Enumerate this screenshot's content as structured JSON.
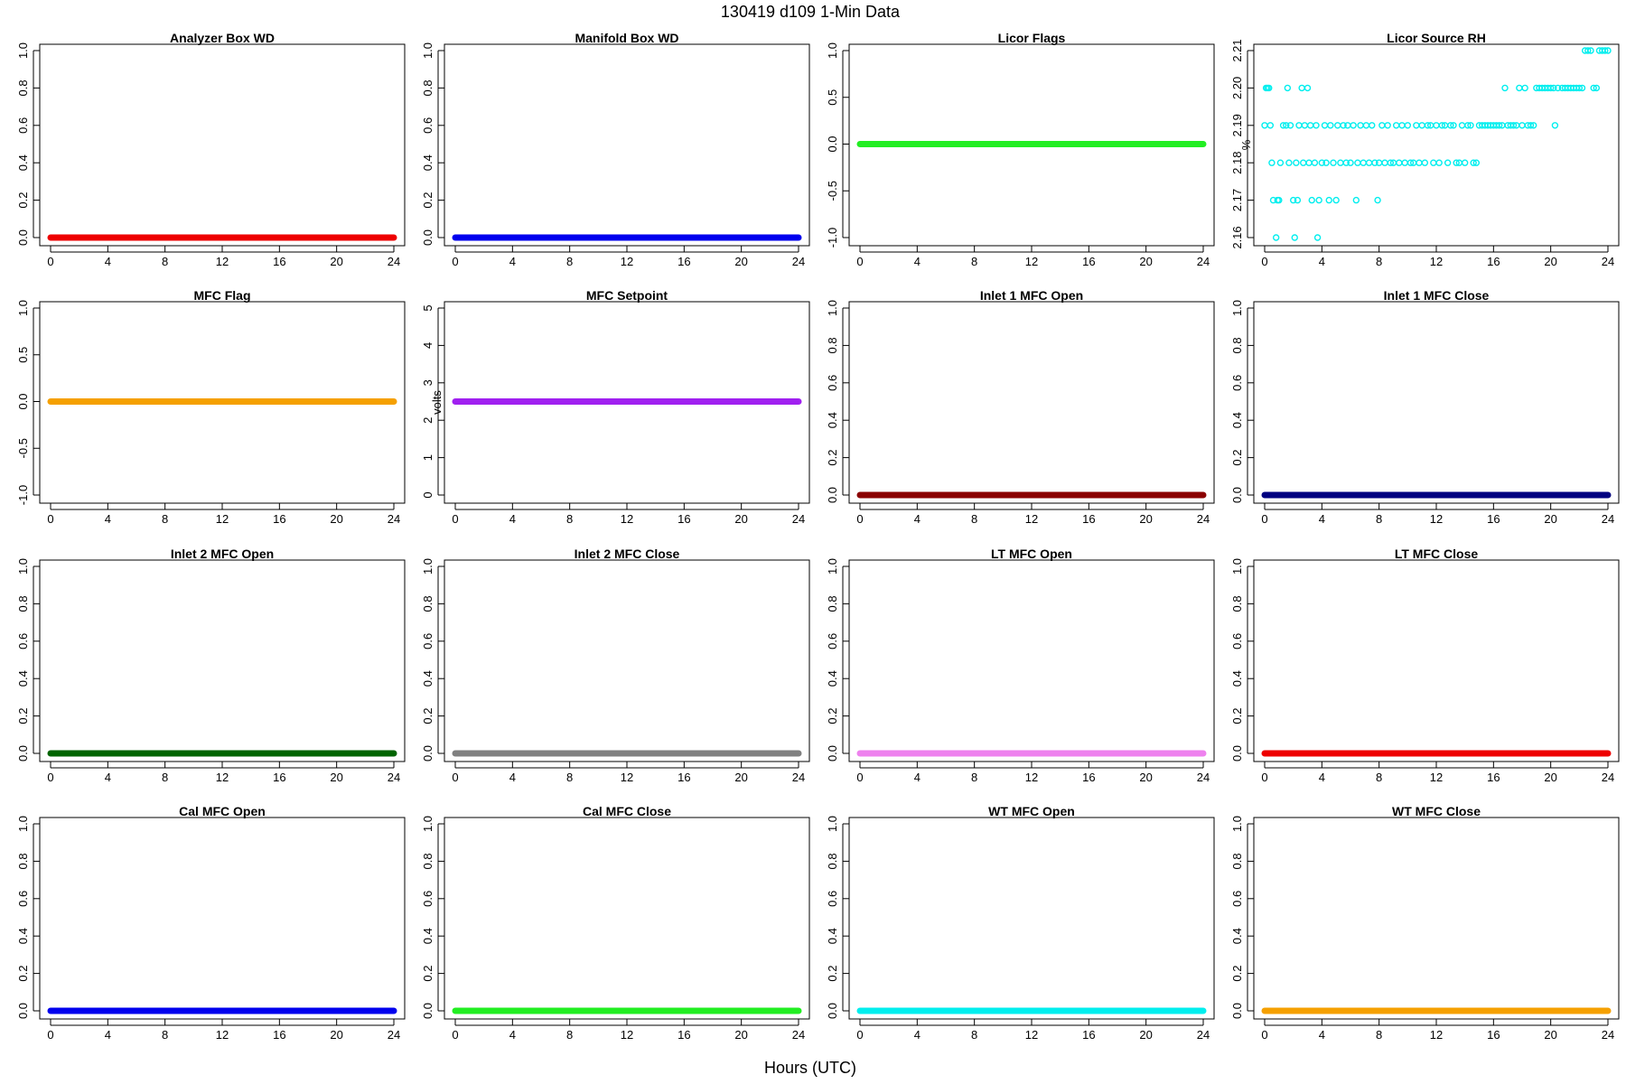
{
  "figure": {
    "title": "130419   d109   1-Min Data",
    "xlabel": "Hours (UTC)"
  },
  "chart_data": [
    {
      "type": "scatter",
      "title": "Analyzer Box WD",
      "ylabel": "",
      "color": "#ee0000",
      "xlim": [
        0,
        24
      ],
      "ylim": [
        0,
        1
      ],
      "xticks": [
        "0",
        "4",
        "8",
        "12",
        "16",
        "20",
        "24"
      ],
      "yticks": [
        "0.0",
        "0.2",
        "0.4",
        "0.6",
        "0.8",
        "1.0"
      ],
      "series": [
        {
          "x": [
            0,
            24
          ],
          "y": [
            0,
            0
          ],
          "continuous": true
        }
      ]
    },
    {
      "type": "scatter",
      "title": "Manifold Box WD",
      "ylabel": "",
      "color": "#0000ee",
      "xlim": [
        0,
        24
      ],
      "ylim": [
        0,
        1
      ],
      "xticks": [
        "0",
        "4",
        "8",
        "12",
        "16",
        "20",
        "24"
      ],
      "yticks": [
        "0.0",
        "0.2",
        "0.4",
        "0.6",
        "0.8",
        "1.0"
      ],
      "series": [
        {
          "x": [
            0,
            24
          ],
          "y": [
            0,
            0
          ],
          "continuous": true
        }
      ]
    },
    {
      "type": "scatter",
      "title": "Licor Flags",
      "ylabel": "",
      "color": "#22ee22",
      "xlim": [
        0,
        24
      ],
      "ylim": [
        -1,
        1
      ],
      "xticks": [
        "0",
        "4",
        "8",
        "12",
        "16",
        "20",
        "24"
      ],
      "yticks": [
        "-1.0",
        "-0.5",
        "0.0",
        "0.5",
        "1.0"
      ],
      "series": [
        {
          "x": [
            0,
            24
          ],
          "y": [
            0,
            0
          ],
          "continuous": true
        }
      ]
    },
    {
      "type": "scatter",
      "title": "Licor Source RH",
      "ylabel": "%",
      "color": "#00eeee",
      "xlim": [
        0,
        24
      ],
      "ylim": [
        2.16,
        2.21
      ],
      "xticks": [
        "0",
        "4",
        "8",
        "12",
        "16",
        "20",
        "24"
      ],
      "yticks": [
        "2.16",
        "2.17",
        "2.18",
        "2.19",
        "2.20",
        "2.21"
      ],
      "points": [
        [
          0.0,
          2.19
        ],
        [
          0.1,
          2.2
        ],
        [
          0.2,
          2.2
        ],
        [
          0.3,
          2.2
        ],
        [
          0.4,
          2.19
        ],
        [
          0.5,
          2.18
        ],
        [
          0.6,
          2.17
        ],
        [
          0.8,
          2.16
        ],
        [
          0.9,
          2.17
        ],
        [
          1.0,
          2.17
        ],
        [
          1.1,
          2.18
        ],
        [
          1.3,
          2.19
        ],
        [
          1.5,
          2.19
        ],
        [
          1.6,
          2.2
        ],
        [
          1.7,
          2.18
        ],
        [
          1.8,
          2.19
        ],
        [
          2.0,
          2.17
        ],
        [
          2.1,
          2.16
        ],
        [
          2.2,
          2.18
        ],
        [
          2.3,
          2.17
        ],
        [
          2.4,
          2.19
        ],
        [
          2.6,
          2.2
        ],
        [
          2.7,
          2.18
        ],
        [
          2.8,
          2.19
        ],
        [
          3.0,
          2.2
        ],
        [
          3.1,
          2.18
        ],
        [
          3.2,
          2.19
        ],
        [
          3.3,
          2.17
        ],
        [
          3.5,
          2.18
        ],
        [
          3.6,
          2.19
        ],
        [
          3.7,
          2.16
        ],
        [
          3.8,
          2.17
        ],
        [
          4.0,
          2.18
        ],
        [
          4.2,
          2.19
        ],
        [
          4.3,
          2.18
        ],
        [
          4.5,
          2.17
        ],
        [
          4.6,
          2.19
        ],
        [
          4.8,
          2.18
        ],
        [
          5.0,
          2.17
        ],
        [
          5.1,
          2.19
        ],
        [
          5.3,
          2.18
        ],
        [
          5.5,
          2.19
        ],
        [
          5.7,
          2.18
        ],
        [
          5.8,
          2.19
        ],
        [
          6.0,
          2.18
        ],
        [
          6.2,
          2.19
        ],
        [
          6.4,
          2.17
        ],
        [
          6.5,
          2.18
        ],
        [
          6.7,
          2.19
        ],
        [
          6.9,
          2.18
        ],
        [
          7.1,
          2.19
        ],
        [
          7.3,
          2.18
        ],
        [
          7.5,
          2.19
        ],
        [
          7.7,
          2.18
        ],
        [
          7.9,
          2.17
        ],
        [
          8.0,
          2.18
        ],
        [
          8.2,
          2.19
        ],
        [
          8.4,
          2.18
        ],
        [
          8.6,
          2.19
        ],
        [
          8.8,
          2.18
        ],
        [
          9.0,
          2.18
        ],
        [
          9.2,
          2.19
        ],
        [
          9.4,
          2.18
        ],
        [
          9.6,
          2.19
        ],
        [
          9.8,
          2.18
        ],
        [
          10.0,
          2.19
        ],
        [
          10.2,
          2.18
        ],
        [
          10.4,
          2.18
        ],
        [
          10.6,
          2.19
        ],
        [
          10.8,
          2.18
        ],
        [
          11.0,
          2.19
        ],
        [
          11.2,
          2.18
        ],
        [
          11.4,
          2.19
        ],
        [
          11.6,
          2.19
        ],
        [
          11.8,
          2.18
        ],
        [
          12.0,
          2.19
        ],
        [
          12.2,
          2.18
        ],
        [
          12.4,
          2.19
        ],
        [
          12.6,
          2.19
        ],
        [
          12.8,
          2.18
        ],
        [
          13.0,
          2.19
        ],
        [
          13.2,
          2.19
        ],
        [
          13.4,
          2.18
        ],
        [
          13.6,
          2.18
        ],
        [
          13.8,
          2.19
        ],
        [
          14.0,
          2.18
        ],
        [
          14.2,
          2.19
        ],
        [
          14.4,
          2.19
        ],
        [
          14.6,
          2.18
        ],
        [
          14.8,
          2.18
        ],
        [
          15.0,
          2.19
        ],
        [
          15.2,
          2.19
        ],
        [
          15.4,
          2.19
        ],
        [
          15.6,
          2.19
        ],
        [
          15.8,
          2.19
        ],
        [
          16.0,
          2.19
        ],
        [
          16.2,
          2.19
        ],
        [
          16.4,
          2.19
        ],
        [
          16.6,
          2.19
        ],
        [
          16.8,
          2.2
        ],
        [
          17.0,
          2.19
        ],
        [
          17.2,
          2.19
        ],
        [
          17.4,
          2.19
        ],
        [
          17.6,
          2.19
        ],
        [
          17.8,
          2.2
        ],
        [
          18.0,
          2.19
        ],
        [
          18.2,
          2.2
        ],
        [
          18.4,
          2.19
        ],
        [
          18.6,
          2.19
        ],
        [
          18.8,
          2.19
        ],
        [
          19.0,
          2.2
        ],
        [
          19.2,
          2.2
        ],
        [
          19.4,
          2.2
        ],
        [
          19.6,
          2.2
        ],
        [
          19.8,
          2.2
        ],
        [
          20.0,
          2.2
        ],
        [
          20.2,
          2.2
        ],
        [
          20.3,
          2.19
        ],
        [
          20.5,
          2.2
        ],
        [
          20.8,
          2.2
        ],
        [
          21.0,
          2.2
        ],
        [
          21.2,
          2.2
        ],
        [
          21.4,
          2.2
        ],
        [
          21.6,
          2.2
        ],
        [
          21.8,
          2.2
        ],
        [
          22.0,
          2.2
        ],
        [
          22.2,
          2.2
        ],
        [
          22.4,
          2.21
        ],
        [
          22.6,
          2.21
        ],
        [
          22.8,
          2.21
        ],
        [
          23.0,
          2.2
        ],
        [
          23.2,
          2.2
        ],
        [
          23.4,
          2.21
        ],
        [
          23.6,
          2.21
        ],
        [
          23.8,
          2.21
        ],
        [
          24.0,
          2.21
        ]
      ]
    },
    {
      "type": "scatter",
      "title": "MFC Flag",
      "ylabel": "",
      "color": "#f5a000",
      "xlim": [
        0,
        24
      ],
      "ylim": [
        -1,
        1
      ],
      "xticks": [
        "0",
        "4",
        "8",
        "12",
        "16",
        "20",
        "24"
      ],
      "yticks": [
        "-1.0",
        "-0.5",
        "0.0",
        "0.5",
        "1.0"
      ],
      "series": [
        {
          "x": [
            0,
            24
          ],
          "y": [
            0,
            0
          ],
          "continuous": true
        }
      ]
    },
    {
      "type": "scatter",
      "title": "MFC Setpoint",
      "ylabel": "volts",
      "color": "#a020f0",
      "xlim": [
        0,
        24
      ],
      "ylim": [
        0,
        5
      ],
      "xticks": [
        "0",
        "4",
        "8",
        "12",
        "16",
        "20",
        "24"
      ],
      "yticks": [
        "0",
        "1",
        "2",
        "3",
        "4",
        "5"
      ],
      "series": [
        {
          "x": [
            0,
            24
          ],
          "y": [
            2.5,
            2.5
          ],
          "continuous": true
        }
      ]
    },
    {
      "type": "scatter",
      "title": "Inlet 1 MFC Open",
      "ylabel": "",
      "color": "#8b0000",
      "xlim": [
        0,
        24
      ],
      "ylim": [
        0,
        1
      ],
      "xticks": [
        "0",
        "4",
        "8",
        "12",
        "16",
        "20",
        "24"
      ],
      "yticks": [
        "0.0",
        "0.2",
        "0.4",
        "0.6",
        "0.8",
        "1.0"
      ],
      "series": [
        {
          "x": [
            0,
            24
          ],
          "y": [
            0,
            0
          ],
          "continuous": true
        }
      ]
    },
    {
      "type": "scatter",
      "title": "Inlet 1 MFC Close",
      "ylabel": "",
      "color": "#000080",
      "xlim": [
        0,
        24
      ],
      "ylim": [
        0,
        1
      ],
      "xticks": [
        "0",
        "4",
        "8",
        "12",
        "16",
        "20",
        "24"
      ],
      "yticks": [
        "0.0",
        "0.2",
        "0.4",
        "0.6",
        "0.8",
        "1.0"
      ],
      "series": [
        {
          "x": [
            0,
            24
          ],
          "y": [
            0,
            0
          ],
          "continuous": true
        }
      ]
    },
    {
      "type": "scatter",
      "title": "Inlet 2 MFC Open",
      "ylabel": "",
      "color": "#006400",
      "xlim": [
        0,
        24
      ],
      "ylim": [
        0,
        1
      ],
      "xticks": [
        "0",
        "4",
        "8",
        "12",
        "16",
        "20",
        "24"
      ],
      "yticks": [
        "0.0",
        "0.2",
        "0.4",
        "0.6",
        "0.8",
        "1.0"
      ],
      "series": [
        {
          "x": [
            0,
            24
          ],
          "y": [
            0,
            0
          ],
          "continuous": true
        }
      ]
    },
    {
      "type": "scatter",
      "title": "Inlet 2 MFC Close",
      "ylabel": "",
      "color": "#808080",
      "xlim": [
        0,
        24
      ],
      "ylim": [
        0,
        1
      ],
      "xticks": [
        "0",
        "4",
        "8",
        "12",
        "16",
        "20",
        "24"
      ],
      "yticks": [
        "0.0",
        "0.2",
        "0.4",
        "0.6",
        "0.8",
        "1.0"
      ],
      "series": [
        {
          "x": [
            0,
            24
          ],
          "y": [
            0,
            0
          ],
          "continuous": true
        }
      ]
    },
    {
      "type": "scatter",
      "title": "LT MFC Open",
      "ylabel": "",
      "color": "#ee82ee",
      "xlim": [
        0,
        24
      ],
      "ylim": [
        0,
        1
      ],
      "xticks": [
        "0",
        "4",
        "8",
        "12",
        "16",
        "20",
        "24"
      ],
      "yticks": [
        "0.0",
        "0.2",
        "0.4",
        "0.6",
        "0.8",
        "1.0"
      ],
      "series": [
        {
          "x": [
            0,
            24
          ],
          "y": [
            0,
            0
          ],
          "continuous": true
        }
      ]
    },
    {
      "type": "scatter",
      "title": "LT MFC Close",
      "ylabel": "",
      "color": "#ee0000",
      "xlim": [
        0,
        24
      ],
      "ylim": [
        0,
        1
      ],
      "xticks": [
        "0",
        "4",
        "8",
        "12",
        "16",
        "20",
        "24"
      ],
      "yticks": [
        "0.0",
        "0.2",
        "0.4",
        "0.6",
        "0.8",
        "1.0"
      ],
      "series": [
        {
          "x": [
            0,
            24
          ],
          "y": [
            0,
            0
          ],
          "continuous": true
        }
      ]
    },
    {
      "type": "scatter",
      "title": "Cal MFC Open",
      "ylabel": "",
      "color": "#0000ee",
      "xlim": [
        0,
        24
      ],
      "ylim": [
        0,
        1
      ],
      "xticks": [
        "0",
        "4",
        "8",
        "12",
        "16",
        "20",
        "24"
      ],
      "yticks": [
        "0.0",
        "0.2",
        "0.4",
        "0.6",
        "0.8",
        "1.0"
      ],
      "series": [
        {
          "x": [
            0,
            24
          ],
          "y": [
            0,
            0
          ],
          "continuous": true
        }
      ]
    },
    {
      "type": "scatter",
      "title": "Cal MFC Close",
      "ylabel": "",
      "color": "#22ee22",
      "xlim": [
        0,
        24
      ],
      "ylim": [
        0,
        1
      ],
      "xticks": [
        "0",
        "4",
        "8",
        "12",
        "16",
        "20",
        "24"
      ],
      "yticks": [
        "0.0",
        "0.2",
        "0.4",
        "0.6",
        "0.8",
        "1.0"
      ],
      "series": [
        {
          "x": [
            0,
            24
          ],
          "y": [
            0,
            0
          ],
          "continuous": true
        }
      ]
    },
    {
      "type": "scatter",
      "title": "WT MFC Open",
      "ylabel": "",
      "color": "#00eeee",
      "xlim": [
        0,
        24
      ],
      "ylim": [
        0,
        1
      ],
      "xticks": [
        "0",
        "4",
        "8",
        "12",
        "16",
        "20",
        "24"
      ],
      "yticks": [
        "0.0",
        "0.2",
        "0.4",
        "0.6",
        "0.8",
        "1.0"
      ],
      "series": [
        {
          "x": [
            0,
            24
          ],
          "y": [
            0,
            0
          ],
          "continuous": true
        }
      ]
    },
    {
      "type": "scatter",
      "title": "WT MFC Close",
      "ylabel": "",
      "color": "#f5a000",
      "xlim": [
        0,
        24
      ],
      "ylim": [
        0,
        1
      ],
      "xticks": [
        "0",
        "4",
        "8",
        "12",
        "16",
        "20",
        "24"
      ],
      "yticks": [
        "0.0",
        "0.2",
        "0.4",
        "0.6",
        "0.8",
        "1.0"
      ],
      "series": [
        {
          "x": [
            0,
            24
          ],
          "y": [
            0,
            0
          ],
          "continuous": true
        }
      ]
    }
  ]
}
